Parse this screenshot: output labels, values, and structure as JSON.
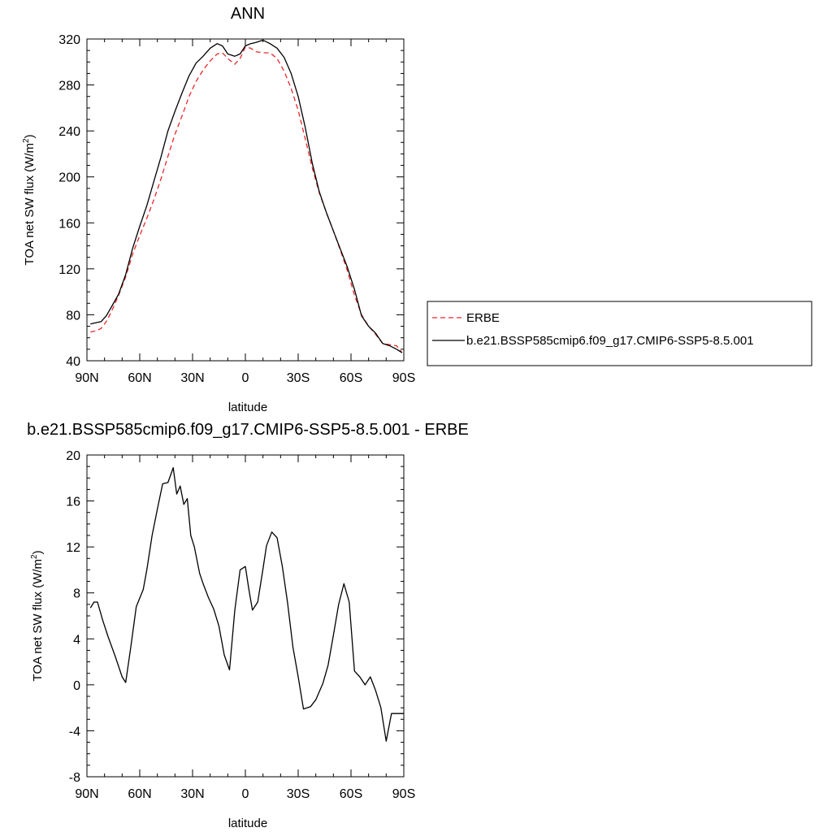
{
  "chart_data": [
    {
      "type": "line",
      "title": "ANN",
      "xlabel": "latitude",
      "ylabel": "TOA net SW flux (W/m",
      "ylabel_sup": "2",
      "ylabel_close": ")",
      "xlim": [
        90,
        -90
      ],
      "ylim": [
        40,
        320
      ],
      "xticks": [
        90,
        60,
        30,
        0,
        -30,
        -60,
        -90
      ],
      "xticklabels": [
        "90N",
        "60N",
        "30N",
        "0",
        "30S",
        "60S",
        "90S"
      ],
      "yticks": [
        40,
        80,
        120,
        160,
        200,
        240,
        280,
        320
      ],
      "yticklabels": [
        "40",
        "80",
        "120",
        "160",
        "200",
        "240",
        "280",
        "320"
      ],
      "grid": false,
      "legend_position": "right",
      "series": [
        {
          "name": "ERBE",
          "color": "#e8282a",
          "dash": "dashed",
          "x": [
            88,
            85,
            82,
            79,
            76,
            72,
            68,
            64,
            60,
            56,
            52,
            48,
            44,
            40,
            36,
            32,
            28,
            24,
            20,
            16,
            13,
            10,
            6,
            3,
            0,
            -3,
            -6,
            -10,
            -14,
            -18,
            -22,
            -26,
            -30,
            -34,
            -38,
            -42,
            -46,
            -50,
            -54,
            -58,
            -62,
            -66,
            -70,
            -74,
            -78,
            -82,
            -86,
            -89
          ],
          "values": [
            65,
            66,
            68,
            74,
            83,
            97,
            113,
            133,
            149,
            164,
            180,
            198,
            218,
            237,
            253,
            270,
            283,
            293,
            301,
            307,
            308,
            303,
            298,
            303,
            313,
            312,
            309,
            308,
            308,
            303,
            292,
            277,
            258,
            233,
            208,
            186,
            169,
            153,
            136,
            118,
            97,
            80,
            70,
            63,
            55,
            54,
            53,
            47
          ]
        },
        {
          "name": "b.e21.BSSP585cmip6.f09_g17.CMIP6-SSP5-8.5.001",
          "color": "#000000",
          "dash": "solid",
          "x": [
            88,
            85,
            82,
            79,
            76,
            72,
            68,
            64,
            60,
            56,
            52,
            48,
            44,
            40,
            36,
            32,
            28,
            24,
            20,
            16,
            13,
            10,
            6,
            3,
            0,
            -3,
            -6,
            -10,
            -14,
            -18,
            -22,
            -26,
            -30,
            -34,
            -38,
            -42,
            -46,
            -50,
            -54,
            -58,
            -62,
            -66,
            -70,
            -74,
            -78,
            -82,
            -86,
            -89
          ],
          "values": [
            72,
            73,
            74,
            79,
            87,
            98,
            115,
            138,
            157,
            175,
            196,
            217,
            240,
            257,
            273,
            288,
            299,
            305,
            312,
            316,
            314,
            307,
            305,
            307,
            314,
            316,
            317,
            319,
            316,
            312,
            304,
            290,
            270,
            243,
            212,
            187,
            169,
            153,
            137,
            121,
            102,
            79,
            70,
            64,
            55,
            53,
            50,
            47
          ]
        }
      ]
    },
    {
      "type": "line",
      "title": "b.e21.BSSP585cmip6.f09_g17.CMIP6-SSP5-8.5.001 - ERBE",
      "xlabel": "latitude",
      "ylabel": "TOA net SW flux (W/m",
      "ylabel_sup": "2",
      "ylabel_close": ")",
      "xlim": [
        90,
        -90
      ],
      "ylim": [
        -8,
        20
      ],
      "xticks": [
        90,
        60,
        30,
        0,
        -30,
        -60,
        -90
      ],
      "xticklabels": [
        "90N",
        "60N",
        "30N",
        "0",
        "30S",
        "60S",
        "90S"
      ],
      "yticks": [
        -8,
        -4,
        0,
        4,
        8,
        12,
        16,
        20
      ],
      "yticklabels": [
        "-8",
        "-4",
        "0",
        "4",
        "8",
        "12",
        "16",
        "20"
      ],
      "grid": false,
      "series": [
        {
          "color": "#000000",
          "dash": "solid",
          "x": [
            88,
            86,
            84,
            81,
            78,
            74,
            70,
            68,
            65,
            62,
            58,
            56,
            53,
            50,
            47,
            44,
            41,
            39,
            37,
            35,
            33,
            31,
            29,
            26,
            24,
            21,
            18,
            15,
            12,
            9,
            6,
            3,
            0,
            -2,
            -4,
            -7,
            -10,
            -12,
            -15,
            -18,
            -21,
            -24,
            -27,
            -30,
            -33,
            -37,
            -40,
            -44,
            -47,
            -50,
            -53,
            -56,
            -59,
            -62,
            -65,
            -68,
            -71,
            -74,
            -77,
            -80,
            -83,
            -86,
            -88,
            -90
          ],
          "values": [
            6.7,
            7.2,
            7.2,
            5.6,
            4.2,
            2.5,
            0.7,
            0.2,
            3.4,
            6.8,
            8.3,
            10,
            13,
            15.3,
            17.5,
            17.6,
            18.9,
            16.6,
            17.3,
            15.7,
            16.2,
            13,
            12,
            9.7,
            8.8,
            7.6,
            6.6,
            5.1,
            2.6,
            1.3,
            6.5,
            10,
            10.3,
            8.3,
            6.5,
            7.2,
            10.1,
            12.1,
            13.3,
            12.8,
            10.3,
            7.1,
            3.3,
            0.7,
            -2.1,
            -1.9,
            -1.3,
            0.1,
            1.7,
            4.3,
            7,
            8.8,
            7.2,
            1.2,
            0.7,
            0,
            0.7,
            -0.5,
            -2,
            -4.9,
            -2.5,
            -2.5,
            -2.5,
            -2.5
          ]
        }
      ]
    }
  ]
}
